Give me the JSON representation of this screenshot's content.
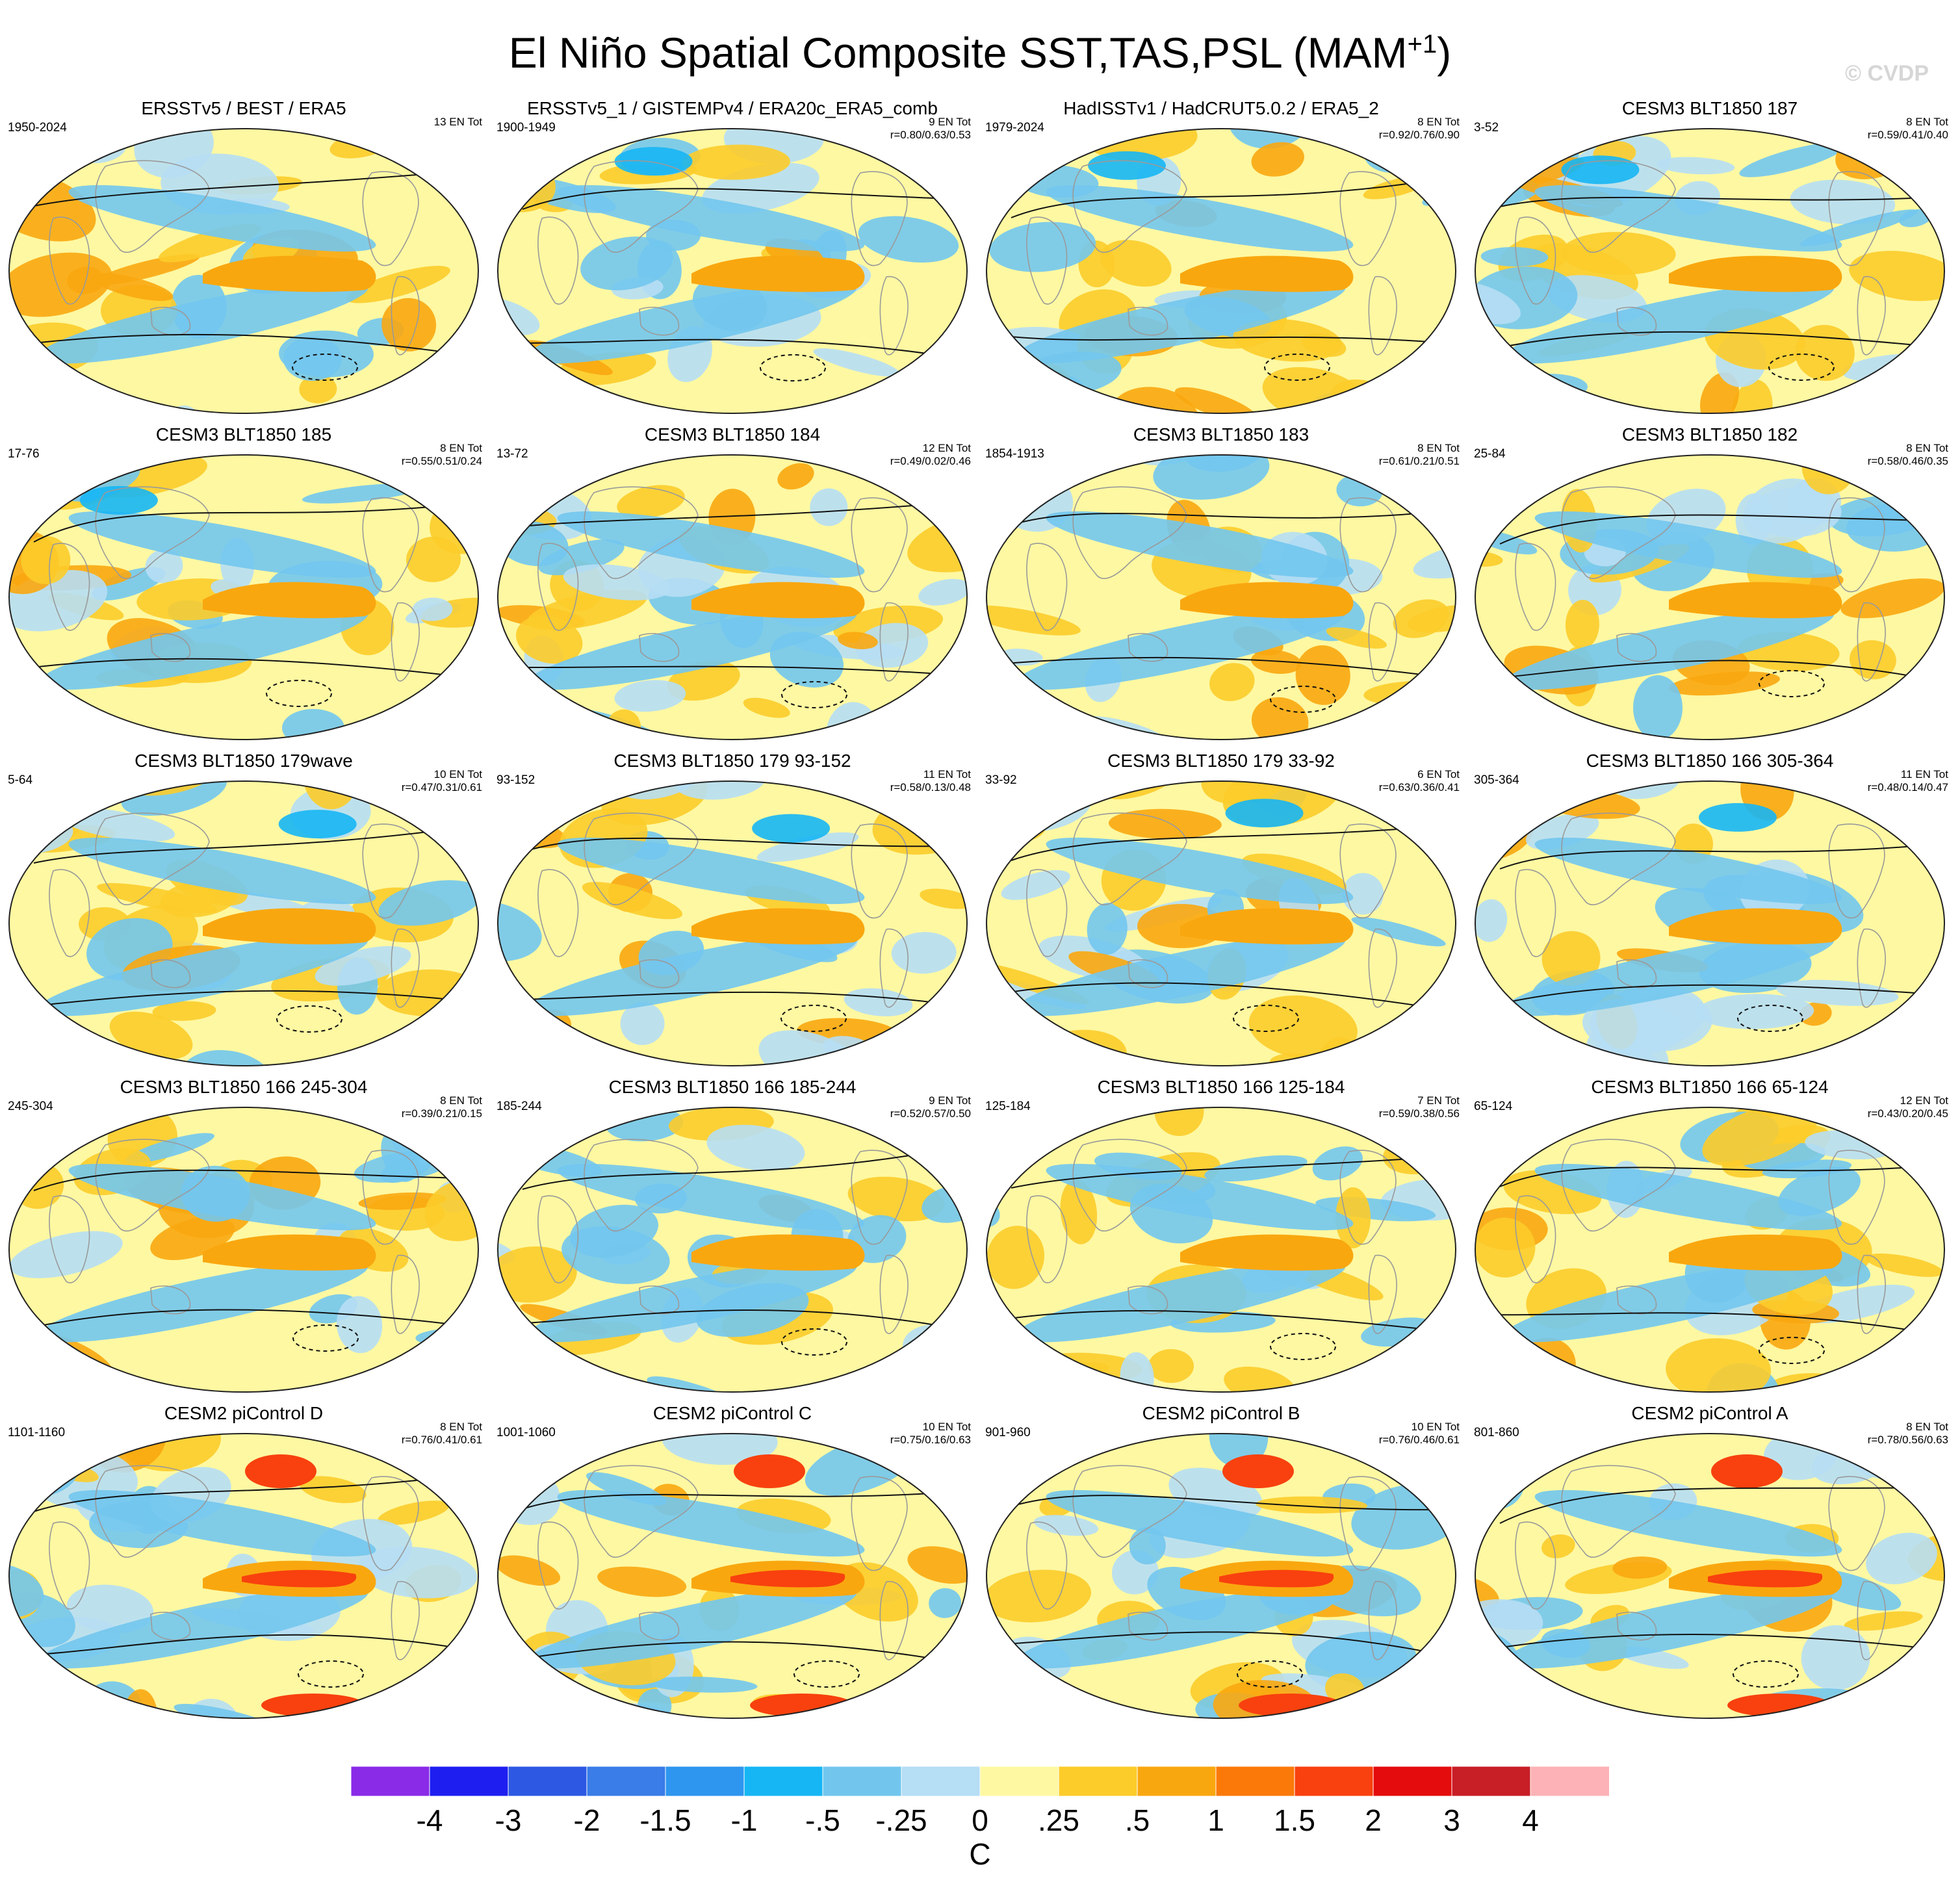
{
  "figure": {
    "title": "El Niño Spatial Composite SST,TAS,PSL (MAM",
    "title_sup": "+1",
    "title_close": ")",
    "watermark": "© CVDP"
  },
  "panels": [
    {
      "title": "ERSSTv5 / BEST / ERA5",
      "years": "1950-2024",
      "count": "13 EN Tot",
      "stats": ""
    },
    {
      "title": "ERSSTv5_1 / GISTEMPv4 / ERA20c_ERA5_comb",
      "years": "1900-1949",
      "count": "9 EN Tot",
      "stats": "r=0.80/0.63/0.53"
    },
    {
      "title": "HadISSTv1 / HadCRUT5.0.2 / ERA5_2",
      "years": "1979-2024",
      "count": "8 EN Tot",
      "stats": "r=0.92/0.76/0.90"
    },
    {
      "title": "CESM3 BLT1850 187",
      "years": "3-52",
      "count": "8 EN Tot",
      "stats": "r=0.59/0.41/0.40"
    },
    {
      "title": "CESM3 BLT1850 185",
      "years": "17-76",
      "count": "8 EN Tot",
      "stats": "r=0.55/0.51/0.24"
    },
    {
      "title": "CESM3 BLT1850 184",
      "years": "13-72",
      "count": "12 EN Tot",
      "stats": "r=0.49/0.02/0.46"
    },
    {
      "title": "CESM3 BLT1850 183",
      "years": "1854-1913",
      "count": "8 EN Tot",
      "stats": "r=0.61/0.21/0.51"
    },
    {
      "title": "CESM3 BLT1850 182",
      "years": "25-84",
      "count": "8 EN Tot",
      "stats": "r=0.58/0.46/0.35"
    },
    {
      "title": "CESM3 BLT1850 179wave",
      "years": "5-64",
      "count": "10 EN Tot",
      "stats": "r=0.47/0.31/0.61"
    },
    {
      "title": "CESM3 BLT1850 179 93-152",
      "years": "93-152",
      "count": "11 EN Tot",
      "stats": "r=0.58/0.13/0.48"
    },
    {
      "title": "CESM3 BLT1850 179 33-92",
      "years": "33-92",
      "count": "6 EN Tot",
      "stats": "r=0.63/0.36/0.41"
    },
    {
      "title": "CESM3 BLT1850 166 305-364",
      "years": "305-364",
      "count": "11 EN Tot",
      "stats": "r=0.48/0.14/0.47"
    },
    {
      "title": "CESM3 BLT1850 166 245-304",
      "years": "245-304",
      "count": "8 EN Tot",
      "stats": "r=0.39/0.21/0.15"
    },
    {
      "title": "CESM3 BLT1850 166 185-244",
      "years": "185-244",
      "count": "9 EN Tot",
      "stats": "r=0.52/0.57/0.50"
    },
    {
      "title": "CESM3 BLT1850 166 125-184",
      "years": "125-184",
      "count": "7 EN Tot",
      "stats": "r=0.59/0.38/0.56"
    },
    {
      "title": "CESM3 BLT1850 166 65-124",
      "years": "65-124",
      "count": "12 EN Tot",
      "stats": "r=0.43/0.20/0.45"
    },
    {
      "title": "CESM2 piControl D",
      "years": "1101-1160",
      "count": "8 EN Tot",
      "stats": "r=0.76/0.41/0.61"
    },
    {
      "title": "CESM2 piControl C",
      "years": "1001-1060",
      "count": "10 EN Tot",
      "stats": "r=0.75/0.16/0.63"
    },
    {
      "title": "CESM2 piControl B",
      "years": "901-960",
      "count": "10 EN Tot",
      "stats": "r=0.76/0.46/0.61"
    },
    {
      "title": "CESM2 piControl A",
      "years": "801-860",
      "count": "8 EN Tot",
      "stats": "r=0.78/0.56/0.63"
    }
  ],
  "colorbar": {
    "unit": "C",
    "tick_labels": [
      "-4",
      "-3",
      "-2",
      "-1.5",
      "-1",
      "-.5",
      "-.25",
      "0",
      ".25",
      ".5",
      "1",
      "1.5",
      "2",
      "3",
      "4"
    ],
    "colors": [
      "#8a2be8",
      "#1e1ef0",
      "#2c58e4",
      "#3a7ce8",
      "#2e96ef",
      "#16b6f4",
      "#72c6ee",
      "#b6def4",
      "#fef8a2",
      "#fccc2a",
      "#f9a70f",
      "#fb7909",
      "#f8410e",
      "#e40c0c",
      "#c81e26",
      "#fcb2b6"
    ]
  }
}
